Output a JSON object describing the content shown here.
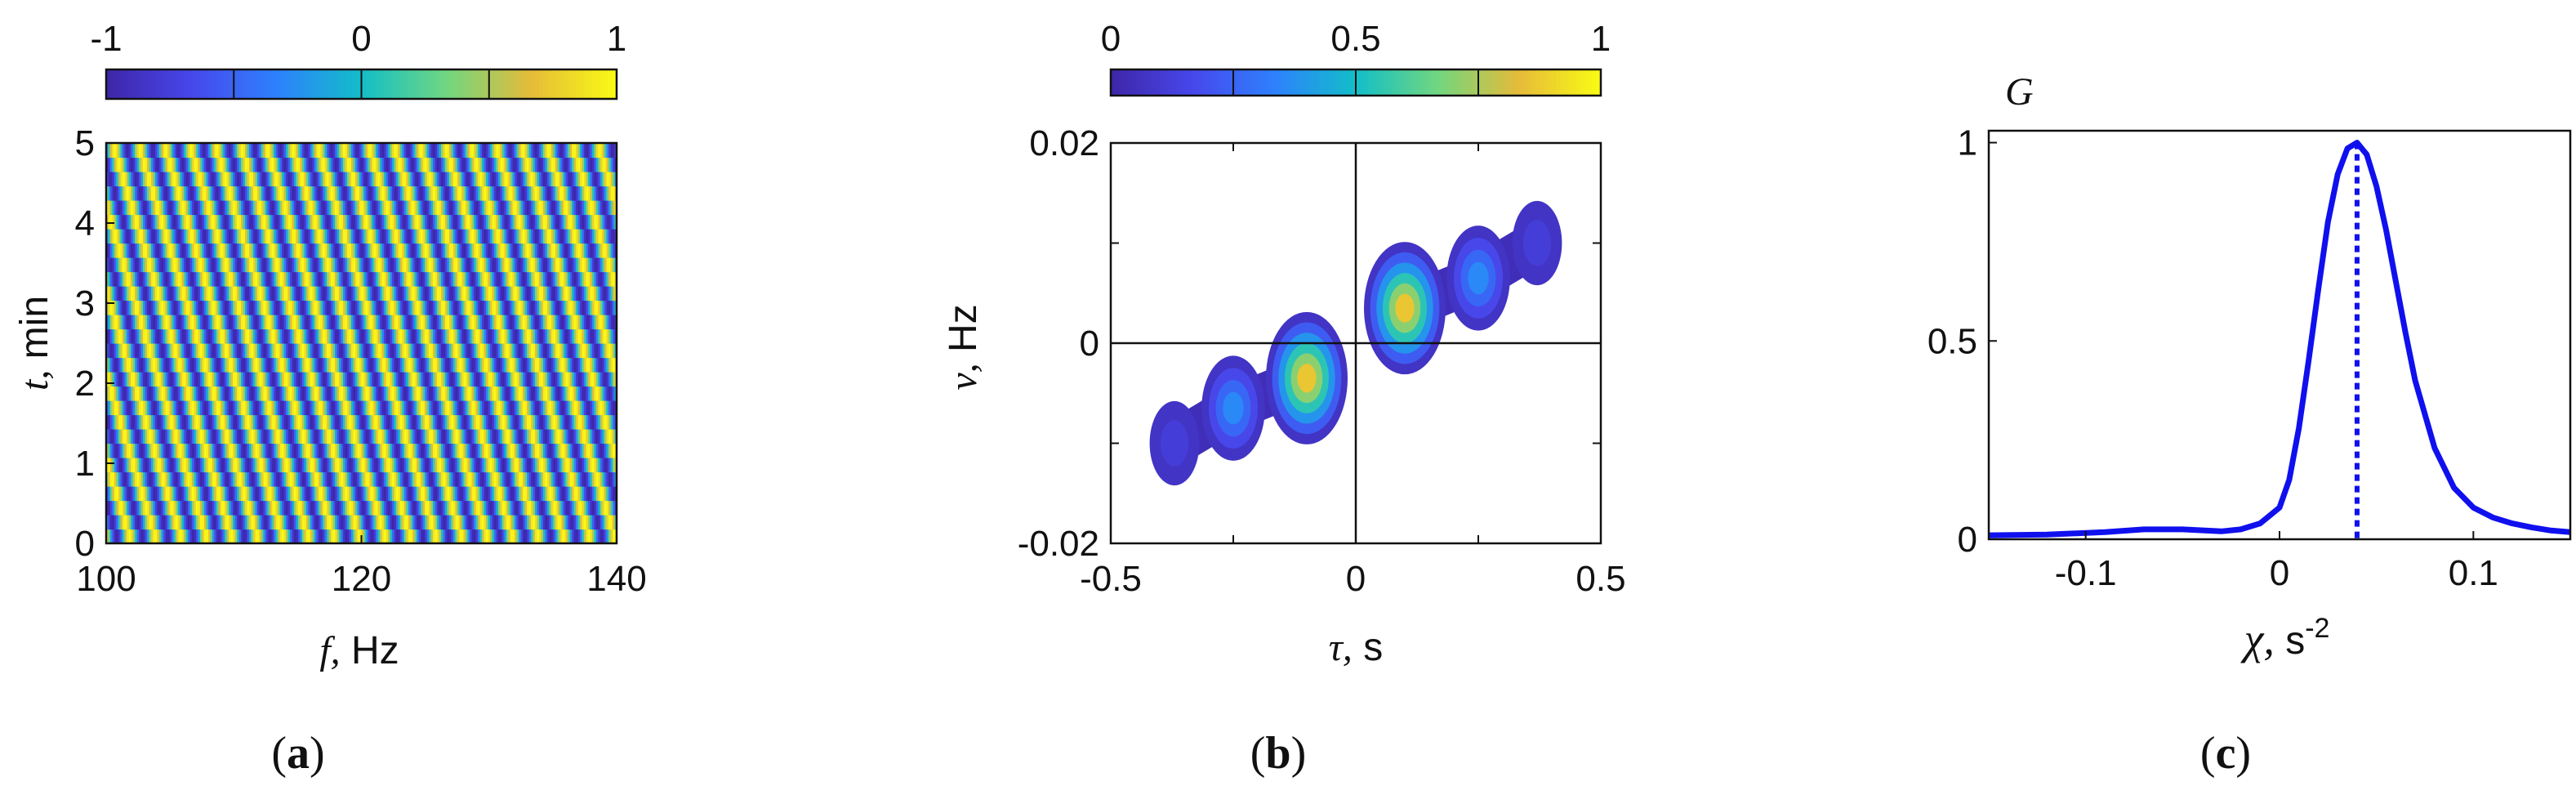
{
  "chart_data": [
    {
      "type": "heatmap",
      "caption": "(a)",
      "caption_letter": "a",
      "xlabel_var": "f,",
      "xlabel_unit": "Hz",
      "ylabel_var": "t,",
      "ylabel_unit": "min",
      "xlim": [
        100,
        140
      ],
      "ylim": [
        0,
        5
      ],
      "xticks": [
        "100",
        "120",
        "140"
      ],
      "xtick_values": [
        100,
        120,
        140
      ],
      "yticks": [
        "0",
        "1",
        "2",
        "3",
        "4",
        "5"
      ],
      "ytick_values": [
        0,
        1,
        2,
        3,
        4,
        5
      ],
      "colorbar_ticks": [
        "-1",
        "0",
        "1"
      ],
      "colorbar_tick_values": [
        -1,
        0,
        1
      ],
      "clim": [
        -1,
        1
      ],
      "fringe_frequency_hz": 0.5,
      "fringe_frequency_drift_hz_per_min": 0.95
    },
    {
      "type": "contour",
      "caption": "(b)",
      "caption_letter": "b",
      "xlabel_var": "τ,",
      "xlabel_unit": "s",
      "ylabel_var": "ν,",
      "ylabel_unit": "Hz",
      "xlim": [
        -0.5,
        0.5
      ],
      "ylim": [
        -0.02,
        0.02
      ],
      "xticks": [
        "-0.5",
        "0",
        "0.5"
      ],
      "xtick_values": [
        -0.5,
        0,
        0.5
      ],
      "yticks": [
        "-0.02",
        "0",
        "0.02"
      ],
      "ytick_values": [
        -0.02,
        0,
        0.02
      ],
      "colorbar_ticks": [
        "0",
        "0.5",
        "1"
      ],
      "colorbar_tick_values": [
        0,
        0.5,
        1
      ],
      "clim": [
        0,
        1
      ],
      "peaks": [
        {
          "tau": 0.1,
          "nu": 0.0035,
          "amplitude": 1.0
        },
        {
          "tau": 0.25,
          "nu": 0.0065,
          "amplitude": 0.6
        },
        {
          "tau": 0.37,
          "nu": 0.01,
          "amplitude": 0.3
        },
        {
          "tau": -0.1,
          "nu": -0.0035,
          "amplitude": 1.0
        },
        {
          "tau": -0.25,
          "nu": -0.0065,
          "amplitude": 0.6
        },
        {
          "tau": -0.37,
          "nu": -0.01,
          "amplitude": 0.3
        }
      ]
    },
    {
      "type": "line",
      "caption": "(c)",
      "caption_letter": "c",
      "ylabel": "G",
      "xlabel_var": "χ,",
      "xlabel_unit": "s",
      "xlabel_exponent": "-2",
      "xlim": [
        -0.15,
        0.15
      ],
      "ylim": [
        0,
        1.03
      ],
      "xticks": [
        "-0.1",
        "0",
        "0.1"
      ],
      "xtick_values": [
        -0.1,
        0,
        0.1
      ],
      "yticks": [
        "0",
        "0.5",
        "1"
      ],
      "ytick_values": [
        0,
        0.5,
        1
      ],
      "line_color": "#1010ee",
      "peak_x": 0.04,
      "series": [
        {
          "name": "G",
          "x": [
            -0.15,
            -0.12,
            -0.09,
            -0.07,
            -0.05,
            -0.03,
            -0.02,
            -0.01,
            0.0,
            0.005,
            0.01,
            0.015,
            0.02,
            0.025,
            0.03,
            0.035,
            0.04,
            0.045,
            0.05,
            0.055,
            0.06,
            0.065,
            0.07,
            0.08,
            0.09,
            0.1,
            0.11,
            0.12,
            0.13,
            0.14,
            0.15
          ],
          "y": [
            0.01,
            0.012,
            0.018,
            0.025,
            0.025,
            0.02,
            0.025,
            0.04,
            0.08,
            0.15,
            0.28,
            0.45,
            0.63,
            0.8,
            0.92,
            0.985,
            1.0,
            0.97,
            0.89,
            0.78,
            0.65,
            0.52,
            0.4,
            0.23,
            0.13,
            0.08,
            0.055,
            0.04,
            0.03,
            0.022,
            0.018
          ]
        }
      ]
    }
  ]
}
